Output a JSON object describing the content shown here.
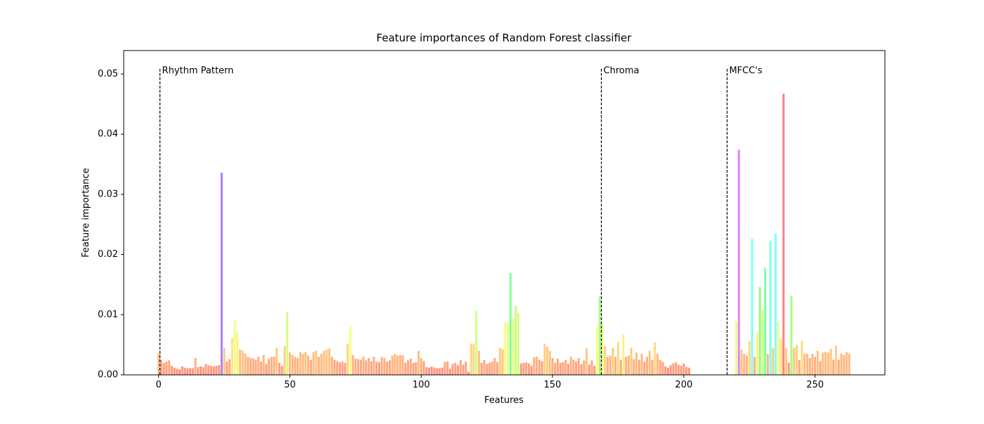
{
  "chart_data": {
    "type": "bar",
    "title": "Feature importances of Random Forest classifier",
    "xlabel": "Features",
    "ylabel": "Feature importance",
    "colormap": "hsv",
    "alpha": 0.5,
    "xlim": [
      -13.3,
      276.6
    ],
    "ylim": [
      0,
      0.0539
    ],
    "xticks": [
      0,
      50,
      100,
      150,
      200,
      250
    ],
    "yticks": [
      {
        "value": 0,
        "label": "0.00"
      },
      {
        "value": 0.01,
        "label": "0.01"
      },
      {
        "value": 0.02,
        "label": "0.02"
      },
      {
        "value": 0.03,
        "label": "0.03"
      },
      {
        "value": 0.04,
        "label": "0.04"
      },
      {
        "value": 0.05,
        "label": "0.05"
      }
    ],
    "vlines": [
      {
        "x": 0.5,
        "ymax": 0.051,
        "label": "Rhythm Pattern"
      },
      {
        "x": 168.6,
        "ymax": 0.051,
        "label": "Chroma"
      },
      {
        "x": 216.5,
        "ymax": 0.051,
        "label": "MFCC's"
      }
    ],
    "x": [
      0,
      1,
      2,
      3,
      4,
      5,
      6,
      7,
      8,
      9,
      10,
      11,
      12,
      13,
      14,
      15,
      16,
      17,
      18,
      19,
      20,
      21,
      22,
      23,
      24,
      25,
      26,
      27,
      28,
      29,
      30,
      31,
      32,
      33,
      34,
      35,
      36,
      37,
      38,
      39,
      40,
      41,
      42,
      43,
      44,
      45,
      46,
      47,
      48,
      49,
      50,
      51,
      52,
      53,
      54,
      55,
      56,
      57,
      58,
      59,
      60,
      61,
      62,
      63,
      64,
      65,
      66,
      67,
      68,
      69,
      70,
      71,
      72,
      73,
      74,
      75,
      76,
      77,
      78,
      79,
      80,
      81,
      82,
      83,
      84,
      85,
      86,
      87,
      88,
      89,
      90,
      91,
      92,
      93,
      94,
      95,
      96,
      97,
      98,
      99,
      100,
      101,
      102,
      103,
      104,
      105,
      106,
      107,
      108,
      109,
      110,
      111,
      112,
      113,
      114,
      115,
      116,
      117,
      118,
      119,
      120,
      121,
      122,
      123,
      124,
      125,
      126,
      127,
      128,
      129,
      130,
      131,
      132,
      133,
      134,
      135,
      136,
      137,
      138,
      139,
      140,
      141,
      142,
      143,
      144,
      145,
      146,
      147,
      148,
      149,
      150,
      151,
      152,
      153,
      154,
      155,
      156,
      157,
      158,
      159,
      160,
      161,
      162,
      163,
      164,
      165,
      166,
      167,
      168,
      169,
      170,
      171,
      172,
      173,
      174,
      175,
      176,
      177,
      178,
      179,
      180,
      181,
      182,
      183,
      184,
      185,
      186,
      187,
      188,
      189,
      190,
      191,
      192,
      193,
      194,
      195,
      196,
      197,
      198,
      199,
      200,
      201,
      202,
      203,
      204,
      205,
      206,
      207,
      208,
      209,
      210,
      211,
      212,
      213,
      214,
      215,
      216,
      217,
      218,
      219,
      220,
      221,
      222,
      223,
      224,
      225,
      226,
      227,
      228,
      229,
      230,
      231,
      232,
      233,
      234,
      235,
      236,
      237,
      238,
      239,
      240,
      241,
      242,
      243,
      244,
      245,
      246,
      247,
      248,
      249,
      250,
      251,
      252,
      253,
      254,
      255,
      256,
      257,
      258,
      259,
      260,
      261,
      262,
      263
    ],
    "values": [
      0.0035,
      0.0025,
      0.002,
      0.0022,
      0.0024,
      0.0015,
      0.0012,
      0.001,
      0.0009,
      0.0014,
      0.0012,
      0.0011,
      0.0011,
      0.0011,
      0.0028,
      0.0013,
      0.0014,
      0.0013,
      0.0018,
      0.0016,
      0.0015,
      0.0014,
      0.0015,
      0.0016,
      0.0336,
      0.0045,
      0.0022,
      0.0026,
      0.0061,
      0.009,
      0.007,
      0.0042,
      0.004,
      0.0035,
      0.003,
      0.0028,
      0.0027,
      0.0025,
      0.003,
      0.0022,
      0.0033,
      0.0018,
      0.0027,
      0.003,
      0.003,
      0.0045,
      0.002,
      0.0015,
      0.0048,
      0.0104,
      0.0037,
      0.0033,
      0.003,
      0.0028,
      0.0038,
      0.0035,
      0.0038,
      0.0032,
      0.0025,
      0.0038,
      0.004,
      0.003,
      0.0035,
      0.004,
      0.0042,
      0.0044,
      0.003,
      0.0025,
      0.0023,
      0.0021,
      0.0022,
      0.002,
      0.0052,
      0.008,
      0.0033,
      0.0027,
      0.0026,
      0.0025,
      0.003,
      0.0024,
      0.0028,
      0.0023,
      0.003,
      0.0022,
      0.0021,
      0.003,
      0.0028,
      0.0022,
      0.0024,
      0.0032,
      0.0035,
      0.0032,
      0.0033,
      0.0033,
      0.002,
      0.0024,
      0.0027,
      0.002,
      0.0021,
      0.004,
      0.0028,
      0.0023,
      0.0013,
      0.0012,
      0.0014,
      0.0012,
      0.0011,
      0.0011,
      0.0012,
      0.0021,
      0.0022,
      0.001,
      0.0018,
      0.002,
      0.0016,
      0.0025,
      0.0017,
      0.0022,
      0.0005,
      0.0052,
      0.0052,
      0.0107,
      0.004,
      0.002,
      0.0025,
      0.0018,
      0.002,
      0.0022,
      0.0028,
      0.0021,
      0.0045,
      0.0043,
      0.0087,
      0.0087,
      0.0169,
      0.0094,
      0.0115,
      0.0103,
      0.0019,
      0.002,
      0.0021,
      0.0019,
      0.0015,
      0.0029,
      0.003,
      0.0025,
      0.0023,
      0.0051,
      0.0047,
      0.004,
      0.0028,
      0.002,
      0.0027,
      0.002,
      0.0021,
      0.0025,
      0.0018,
      0.003,
      0.0025,
      0.0022,
      0.0028,
      0.0018,
      0.0024,
      0.0044,
      0.0017,
      0.0024,
      0.0015,
      0.008,
      0.013,
      0.0085,
      0.0048,
      0.003,
      0.0032,
      0.0045,
      0.003,
      0.0055,
      0.0025,
      0.0068,
      0.003,
      0.0032,
      0.0045,
      0.0026,
      0.0037,
      0.0025,
      0.0035,
      0.0022,
      0.003,
      0.004,
      0.0025,
      0.0054,
      0.0035,
      0.0025,
      0.0022,
      0.0014,
      0.0012,
      0.0016,
      0.0019,
      0.0021,
      0.0017,
      0.0015,
      0.0019,
      0.0013,
      0.0012,
      0,
      0,
      0,
      0,
      0,
      0,
      0,
      0,
      0,
      0,
      0,
      0,
      0,
      0,
      0,
      0,
      0,
      0.0089,
      0.0374,
      0.0042,
      0.0035,
      0.0032,
      0.0056,
      0.0226,
      0.003,
      0.007,
      0.0146,
      0.0108,
      0.0178,
      0.0035,
      0.0223,
      0.0045,
      0.0235,
      0.0087,
      0.006,
      0.0467,
      0.0045,
      0.002,
      0.0132,
      0.0045,
      0.005,
      0.0025,
      0.0057,
      0.0035,
      0.0035,
      0.0028,
      0.0035,
      0.003,
      0.004,
      0.0023,
      0.0037,
      0.0038,
      0.0037,
      0.0043,
      0.0025,
      0.0048,
      0.0025,
      0.0035,
      0.0033,
      0.0038,
      0.0035
    ]
  }
}
